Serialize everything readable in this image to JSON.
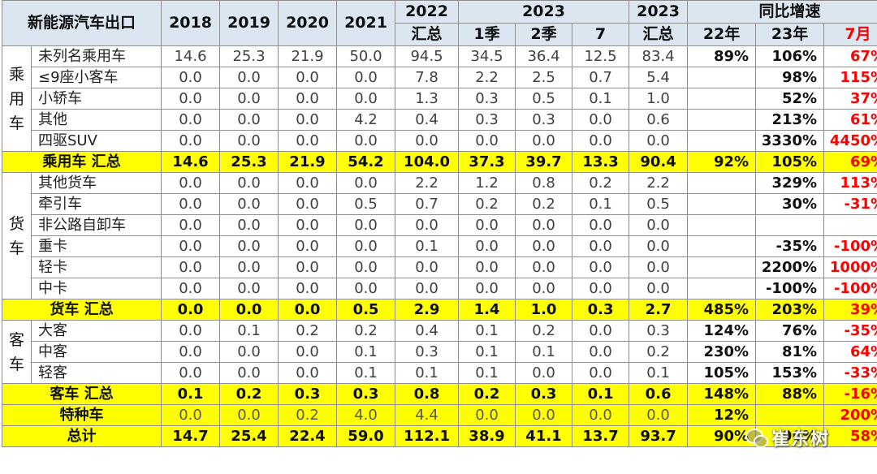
{
  "header": {
    "title": "新能源汽车出口",
    "years": [
      "2018",
      "2019",
      "2020",
      "2021"
    ],
    "y2022_top": "2022",
    "y2022_bottom": "汇总",
    "y2023_top": "2023",
    "q1": "1季",
    "q2": "2季",
    "m7": "7",
    "y2023b_top": "2023",
    "y2023b_bottom": "汇总",
    "yoy_top": "同比增速",
    "yoy_22": "22年",
    "yoy_23": "23年",
    "yoy_jul": "7月"
  },
  "groups": {
    "passenger": "乘用车",
    "truck": "货车",
    "bus": "客车"
  },
  "rows": [
    {
      "label": "未列名乘用车",
      "vals": [
        "14.6",
        "25.3",
        "21.9",
        "50.0",
        "94.5",
        "34.5",
        "36.4",
        "12.5",
        "83.4"
      ],
      "pct": [
        "89%",
        "106%",
        "67%"
      ]
    },
    {
      "label": "≤9座小客车",
      "vals": [
        "0.0",
        "0.0",
        "0.0",
        "0.0",
        "7.8",
        "2.2",
        "2.5",
        "0.7",
        "5.4"
      ],
      "pct": [
        "",
        "98%",
        "115%"
      ]
    },
    {
      "label": "小轿车",
      "vals": [
        "0.0",
        "0.0",
        "0.0",
        "0.0",
        "1.3",
        "0.3",
        "0.5",
        "0.1",
        "1.0"
      ],
      "pct": [
        "",
        "52%",
        "37%"
      ]
    },
    {
      "label": "其他",
      "vals": [
        "0.0",
        "0.0",
        "0.0",
        "4.2",
        "0.4",
        "0.3",
        "0.3",
        "0.0",
        "0.6"
      ],
      "pct": [
        "",
        "213%",
        "61%"
      ]
    },
    {
      "label": "四驱SUV",
      "vals": [
        "0.0",
        "0.0",
        "0.0",
        "0.0",
        "0.0",
        "0.0",
        "0.0",
        "0.0",
        "0.0"
      ],
      "pct": [
        "",
        "3330%",
        "4450%"
      ]
    },
    {
      "label": "乘用车 汇总",
      "vals": [
        "14.6",
        "25.3",
        "21.9",
        "54.2",
        "104.0",
        "37.3",
        "39.7",
        "13.3",
        "90.4"
      ],
      "pct": [
        "92%",
        "105%",
        "69%"
      ]
    },
    {
      "label": "其他货车",
      "vals": [
        "0.0",
        "0.0",
        "0.0",
        "0.0",
        "2.2",
        "1.2",
        "0.8",
        "0.2",
        "2.2"
      ],
      "pct": [
        "",
        "329%",
        "113%"
      ]
    },
    {
      "label": "牵引车",
      "vals": [
        "0.0",
        "0.0",
        "0.0",
        "0.5",
        "0.7",
        "0.2",
        "0.2",
        "0.1",
        "0.5"
      ],
      "pct": [
        "",
        "30%",
        "-31%"
      ]
    },
    {
      "label": "非公路自卸车",
      "vals": [
        "0.0",
        "0.0",
        "0.0",
        "0.0",
        "0.0",
        "0.0",
        "0.0",
        "0.0",
        "0.0"
      ],
      "pct": [
        "",
        "",
        ""
      ]
    },
    {
      "label": "重卡",
      "vals": [
        "0.0",
        "0.0",
        "0.0",
        "0.0",
        "0.1",
        "0.0",
        "0.0",
        "0.0",
        "0.0"
      ],
      "pct": [
        "",
        "-35%",
        "-100%"
      ]
    },
    {
      "label": "轻卡",
      "vals": [
        "0.0",
        "0.0",
        "0.0",
        "0.0",
        "0.0",
        "0.0",
        "0.0",
        "0.0",
        "0.0"
      ],
      "pct": [
        "",
        "2200%",
        "1000%"
      ]
    },
    {
      "label": "中卡",
      "vals": [
        "0.0",
        "0.0",
        "0.0",
        "0.0",
        "0.0",
        "0.0",
        "0.0",
        "0.0",
        "0.0"
      ],
      "pct": [
        "",
        "-100%",
        "-100%"
      ]
    },
    {
      "label": "货车 汇总",
      "vals": [
        "0.0",
        "0.0",
        "0.0",
        "0.5",
        "2.9",
        "1.4",
        "1.0",
        "0.3",
        "2.7"
      ],
      "pct": [
        "485%",
        "203%",
        "39%"
      ]
    },
    {
      "label": "大客",
      "vals": [
        "0.0",
        "0.1",
        "0.2",
        "0.2",
        "0.4",
        "0.1",
        "0.2",
        "0.0",
        "0.3"
      ],
      "pct": [
        "124%",
        "76%",
        "-35%"
      ]
    },
    {
      "label": "中客",
      "vals": [
        "0.0",
        "0.0",
        "0.0",
        "0.1",
        "0.3",
        "0.1",
        "0.1",
        "0.0",
        "0.2"
      ],
      "pct": [
        "230%",
        "81%",
        "64%"
      ]
    },
    {
      "label": "轻客",
      "vals": [
        "0.0",
        "0.0",
        "0.0",
        "0.1",
        "0.1",
        "0.1",
        "0.0",
        "0.0",
        "0.1"
      ],
      "pct": [
        "105%",
        "153%",
        "-33%"
      ]
    },
    {
      "label": "客车 汇总",
      "vals": [
        "0.1",
        "0.2",
        "0.3",
        "0.3",
        "0.8",
        "0.2",
        "0.3",
        "0.1",
        "0.6"
      ],
      "pct": [
        "148%",
        "88%",
        "-16%"
      ]
    },
    {
      "label": "特种车",
      "vals": [
        "0.0",
        "0.0",
        "0.2",
        "4.0",
        "4.4",
        "0.0",
        "0.0",
        "0.0",
        "0.0"
      ],
      "pct": [
        "12%",
        "",
        "200%"
      ]
    },
    {
      "label": "总计",
      "vals": [
        "14.7",
        "25.4",
        "22.4",
        "59.0",
        "112.1",
        "38.9",
        "41.1",
        "13.7",
        "93.7"
      ],
      "pct": [
        "90%",
        "96%",
        "58%"
      ]
    }
  ],
  "watermark": "崔东树",
  "colors": {
    "header_bg": "#dce6f1",
    "highlight": "#ffff00",
    "negative_red": "#ff0000"
  }
}
